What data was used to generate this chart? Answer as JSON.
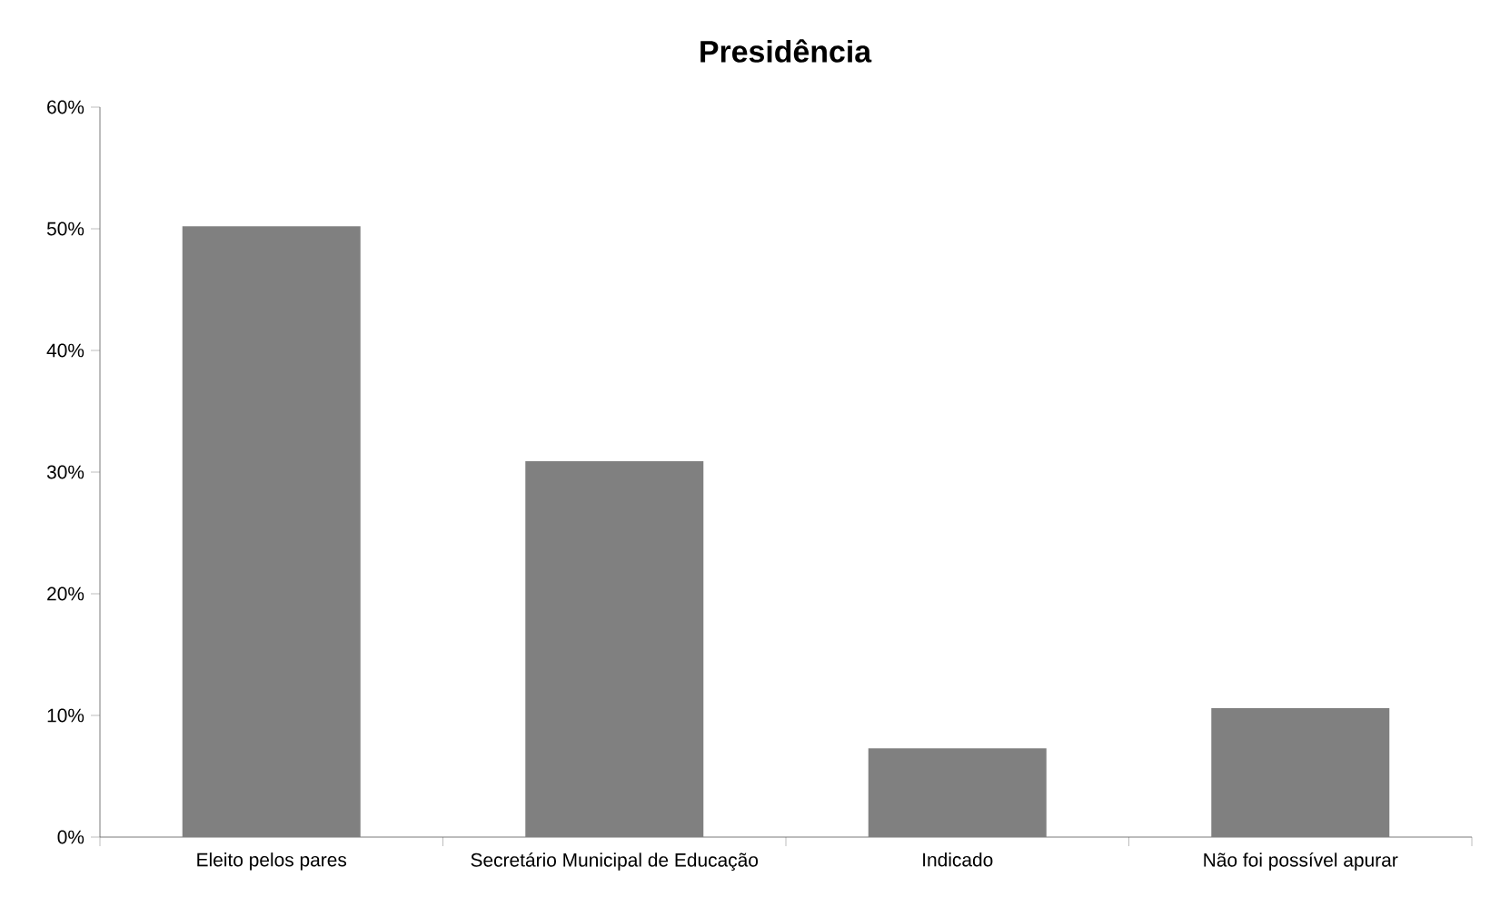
{
  "chart_data": {
    "type": "bar",
    "title": "Presidência",
    "categories": [
      "Eleito pelos pares",
      "Secretário Municipal de Educação",
      "Indicado",
      "Não foi possível apurar"
    ],
    "values": [
      50.2,
      30.9,
      7.3,
      10.6
    ],
    "color": "#808080",
    "ylim": [
      0,
      60
    ],
    "yticks": [
      {
        "value": 0,
        "label": "0%"
      },
      {
        "value": 10,
        "label": "10%"
      },
      {
        "value": 20,
        "label": "20%"
      },
      {
        "value": 30,
        "label": "30%"
      },
      {
        "value": 40,
        "label": "40%"
      },
      {
        "value": 50,
        "label": "50%"
      },
      {
        "value": 60,
        "label": "60%"
      }
    ],
    "grid": false
  }
}
